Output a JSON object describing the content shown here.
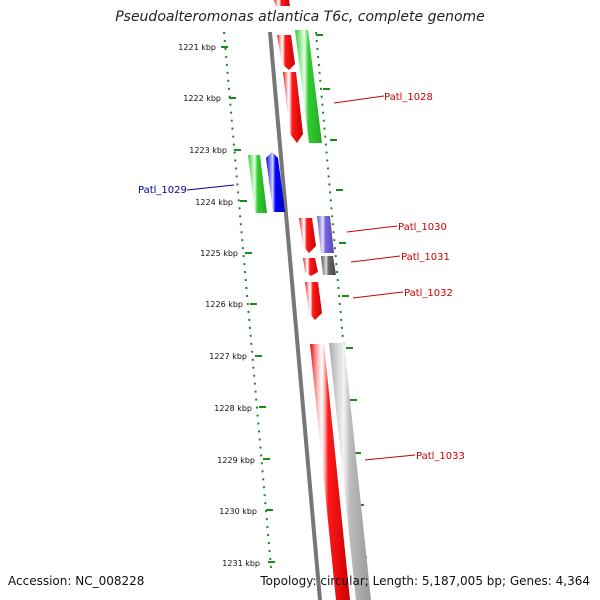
{
  "title": "Pseudoalteromonas atlantica T6c, complete genome",
  "footer": {
    "accession": "Accession: NC_008228",
    "topology": "Topology: circular; Length: 5,187,005 bp; Genes: 4,364"
  },
  "colors": {
    "background": "#ffffff",
    "backbone": "#777777",
    "ruler_dots": "#1a8a1a",
    "red_gene": "#ff0000",
    "green_gene": "#33cc33",
    "blue_gene": "#0000ff",
    "purple_gene": "#7766dd",
    "dark_gray_gene": "#666666",
    "light_gray_gene": "#bbbbbb",
    "red_label": "#cc0000",
    "blue_label": "#000099"
  },
  "ruler": {
    "ticks": [
      "1221 kbp",
      "1222 kbp",
      "1223 kbp",
      "1224 kbp",
      "1225 kbp",
      "1226 kbp",
      "1227 kbp",
      "1228 kbp",
      "1229 kbp",
      "1230 kbp",
      "1231 kbp"
    ]
  },
  "gene_labels": [
    {
      "name": "Patl_1028",
      "color": "#cc0000"
    },
    {
      "name": "Patl_1029",
      "color": "#000099"
    },
    {
      "name": "Patl_1030",
      "color": "#cc0000"
    },
    {
      "name": "Patl_1031",
      "color": "#cc0000"
    },
    {
      "name": "Patl_1032",
      "color": "#cc0000"
    },
    {
      "name": "Patl_1033",
      "color": "#cc0000"
    }
  ]
}
